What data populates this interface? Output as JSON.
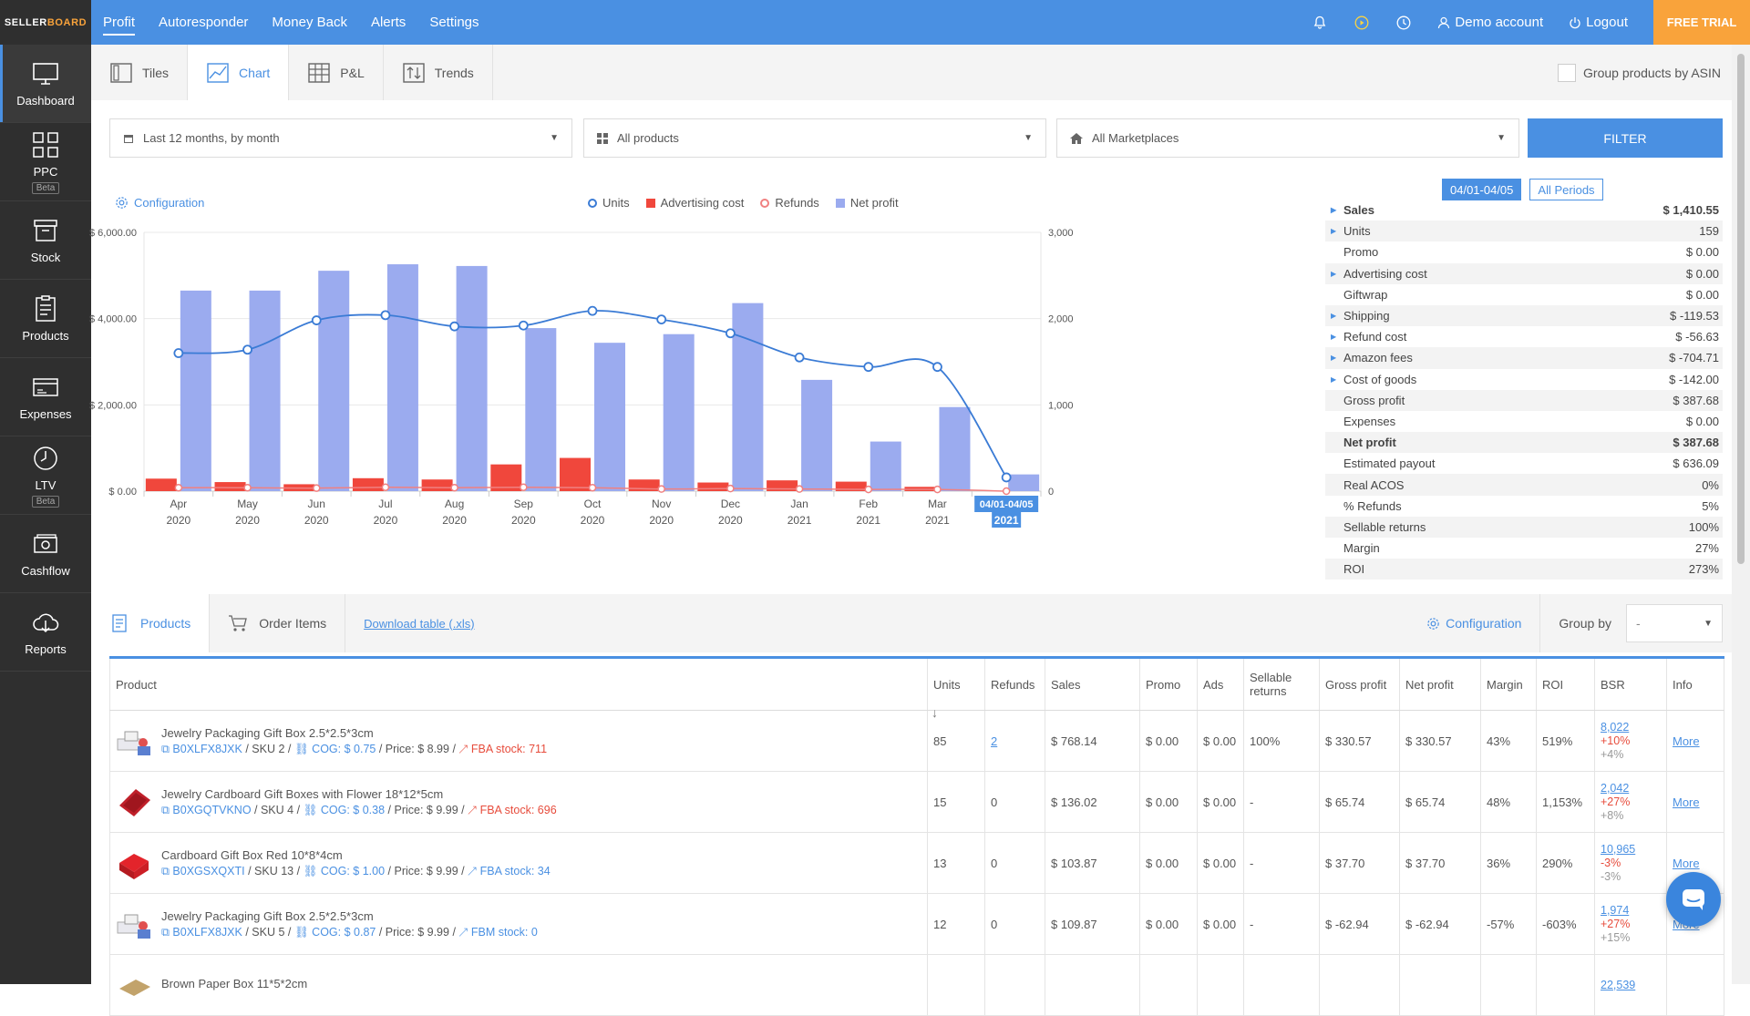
{
  "logo": {
    "part1": "SELLER",
    "part2": "BOARD"
  },
  "sidebar": [
    {
      "id": "dashboard",
      "label": "Dashboard",
      "badge": null,
      "active": true
    },
    {
      "id": "ppc",
      "label": "PPC",
      "badge": "Beta"
    },
    {
      "id": "stock",
      "label": "Stock",
      "badge": null
    },
    {
      "id": "products",
      "label": "Products",
      "badge": null
    },
    {
      "id": "expenses",
      "label": "Expenses",
      "badge": null
    },
    {
      "id": "ltv",
      "label": "LTV",
      "badge": "Beta"
    },
    {
      "id": "cashflow",
      "label": "Cashflow",
      "badge": null
    },
    {
      "id": "reports",
      "label": "Reports",
      "badge": null
    }
  ],
  "topbar": {
    "menu": [
      "Profit",
      "Autoresponder",
      "Money Back",
      "Alerts",
      "Settings"
    ],
    "account": "Demo account",
    "logout": "Logout",
    "free_trial": "FREE TRIAL"
  },
  "tabs": [
    "Tiles",
    "Chart",
    "P&L",
    "Trends"
  ],
  "group_asin": "Group products by ASIN",
  "filters": {
    "period": "Last 12 months, by month",
    "products": "All products",
    "marketplaces": "All Marketplaces",
    "button": "FILTER"
  },
  "chart": {
    "configuration": "Configuration",
    "legend": {
      "units": "Units",
      "ads": "Advertising cost",
      "refunds": "Refunds",
      "net": "Net profit"
    }
  },
  "chart_data": {
    "type": "bar",
    "categories": [
      [
        "Apr",
        "2020"
      ],
      [
        "May",
        "2020"
      ],
      [
        "Jun",
        "2020"
      ],
      [
        "Jul",
        "2020"
      ],
      [
        "Aug",
        "2020"
      ],
      [
        "Sep",
        "2020"
      ],
      [
        "Oct",
        "2020"
      ],
      [
        "Nov",
        "2020"
      ],
      [
        "Dec",
        "2020"
      ],
      [
        "Jan",
        "2021"
      ],
      [
        "Feb",
        "2021"
      ],
      [
        "Mar",
        "2021"
      ],
      [
        "04/01-04/05",
        "2021"
      ]
    ],
    "left_axis": {
      "ticks": [
        "$ 6,000.00",
        "$ 4,000.00",
        "$ 2,000.00",
        "$ 0.00"
      ],
      "min": 0,
      "max": 6000
    },
    "right_axis": {
      "ticks": [
        "3,000",
        "2,000",
        "1,000",
        "0"
      ],
      "min": 0,
      "max": 3000
    },
    "series": [
      {
        "name": "Net profit",
        "kind": "bar",
        "axis": "left",
        "color": "#9babef",
        "values": [
          4650,
          4650,
          5110,
          5260,
          5220,
          3780,
          3440,
          3640,
          4360,
          2580,
          1150,
          1950,
          388
        ]
      },
      {
        "name": "Advertising cost",
        "kind": "bar",
        "axis": "left",
        "color": "#f0473c",
        "values": [
          290,
          210,
          160,
          300,
          270,
          620,
          770,
          270,
          200,
          250,
          220,
          100,
          0
        ]
      },
      {
        "name": "Units",
        "kind": "line",
        "axis": "right",
        "color": "#3a7bd5",
        "values": [
          1600,
          1640,
          1980,
          2040,
          1910,
          1920,
          2090,
          1990,
          1830,
          1550,
          1440,
          1440,
          159
        ]
      },
      {
        "name": "Refunds",
        "kind": "line",
        "axis": "left",
        "color": "#f08080",
        "values": [
          80,
          80,
          70,
          90,
          80,
          90,
          80,
          50,
          60,
          50,
          40,
          40,
          0
        ]
      }
    ]
  },
  "periods": {
    "current": "04/01-04/05",
    "all": "All Periods"
  },
  "stats": [
    {
      "label": "Sales",
      "value": "$ 1,410.55",
      "bold": true,
      "expand": true
    },
    {
      "label": "Units",
      "value": "159",
      "expand": true
    },
    {
      "label": "Promo",
      "value": "$ 0.00"
    },
    {
      "label": "Advertising cost",
      "value": "$ 0.00",
      "expand": true
    },
    {
      "label": "Giftwrap",
      "value": "$ 0.00"
    },
    {
      "label": "Shipping",
      "value": "$ -119.53",
      "expand": true
    },
    {
      "label": "Refund cost",
      "value": "$ -56.63",
      "expand": true
    },
    {
      "label": "Amazon fees",
      "value": "$ -704.71",
      "expand": true
    },
    {
      "label": "Cost of goods",
      "value": "$ -142.00",
      "expand": true
    },
    {
      "label": "Gross profit",
      "value": "$ 387.68"
    },
    {
      "label": "Expenses",
      "value": "$ 0.00"
    },
    {
      "label": "Net profit",
      "value": "$ 387.68",
      "bold": true
    },
    {
      "label": "Estimated payout",
      "value": "$ 636.09"
    },
    {
      "label": "Real ACOS",
      "value": "0%"
    },
    {
      "label": "% Refunds",
      "value": "5%"
    },
    {
      "label": "Sellable returns",
      "value": "100%"
    },
    {
      "label": "Margin",
      "value": "27%"
    },
    {
      "label": "ROI",
      "value": "273%"
    }
  ],
  "bottom": {
    "tabs": [
      "Products",
      "Order Items"
    ],
    "download": "Download table (.xls)",
    "configuration": "Configuration",
    "group_by_label": "Group by",
    "group_by_value": "-"
  },
  "table": {
    "headers": [
      "Product",
      "Units",
      "Refunds",
      "Sales",
      "Promo",
      "Ads",
      "Sellable returns",
      "Gross profit",
      "Net profit",
      "Margin",
      "ROI",
      "BSR",
      "Info"
    ],
    "sort_arrow": "↓",
    "rows": [
      {
        "thumb": "jewelry",
        "title": "Jewelry Packaging Gift Box 2.5*2.5*3cm",
        "asin": "B0XLFX8JXK",
        "sku": "SKU 2",
        "cog": "COG: $ 0.75",
        "price": "Price: $ 8.99",
        "stock": "FBA stock: 711",
        "stock_low": true,
        "units": "85",
        "refunds": "2",
        "refunds_link": true,
        "sales": "$ 768.14",
        "promo": "$ 0.00",
        "ads": "$ 0.00",
        "sellable": "100%",
        "gross": "$ 330.57",
        "net": "$ 330.57",
        "margin": "43%",
        "roi": "519%",
        "bsr": "8,022",
        "bsr_d1": "+10%",
        "bsr_d2": "+4%",
        "info": "More"
      },
      {
        "thumb": "redflower",
        "title": "Jewelry Cardboard Gift Boxes with Flower 18*12*5cm",
        "asin": "B0XGQTVKNO",
        "sku": "SKU 4",
        "cog": "COG: $ 0.38",
        "price": "Price: $ 9.99",
        "stock": "FBA stock: 696",
        "stock_low": true,
        "units": "15",
        "refunds": "0",
        "sales": "$ 136.02",
        "promo": "$ 0.00",
        "ads": "$ 0.00",
        "sellable": "-",
        "gross": "$ 65.74",
        "net": "$ 65.74",
        "margin": "48%",
        "roi": "1,153%",
        "bsr": "2,042",
        "bsr_d1": "+27%",
        "bsr_d2": "+8%",
        "info": "More"
      },
      {
        "thumb": "redbox",
        "title": "Cardboard Gift Box Red 10*8*4cm",
        "asin": "B0XGSXQXTI",
        "sku": "SKU 13",
        "cog": "COG: $ 1.00",
        "price": "Price: $ 9.99",
        "stock": "FBA stock: 34",
        "stock_low": false,
        "units": "13",
        "refunds": "0",
        "sales": "$ 103.87",
        "promo": "$ 0.00",
        "ads": "$ 0.00",
        "sellable": "-",
        "gross": "$ 37.70",
        "net": "$ 37.70",
        "margin": "36%",
        "roi": "290%",
        "bsr": "10,965",
        "bsr_d1": "-3%",
        "bsr_d2": "-3%",
        "info": "More"
      },
      {
        "thumb": "jewelry",
        "title": "Jewelry Packaging Gift Box 2.5*2.5*3cm",
        "asin": "B0XLFX8JXK",
        "sku": "SKU 5",
        "cog": "COG: $ 0.87",
        "price": "Price: $ 9.99",
        "stock": "FBM stock: 0",
        "stock_low": false,
        "units": "12",
        "refunds": "0",
        "sales": "$ 109.87",
        "promo": "$ 0.00",
        "ads": "$ 0.00",
        "sellable": "-",
        "gross": "$ -62.94",
        "net": "$ -62.94",
        "margin": "-57%",
        "roi": "-603%",
        "bsr": "1,974",
        "bsr_d1": "+27%",
        "bsr_d2": "+15%",
        "info": "More"
      },
      {
        "thumb": "brown",
        "title": "Brown Paper Box 11*5*2cm",
        "asin": "",
        "sku": "",
        "cog": "",
        "price": "",
        "stock": "",
        "stock_low": false,
        "units": "",
        "refunds": "",
        "sales": "",
        "promo": "",
        "ads": "",
        "sellable": "",
        "gross": "",
        "net": "",
        "margin": "",
        "roi": "",
        "bsr": "22,539",
        "bsr_d1": "",
        "bsr_d2": "",
        "info": ""
      }
    ]
  }
}
